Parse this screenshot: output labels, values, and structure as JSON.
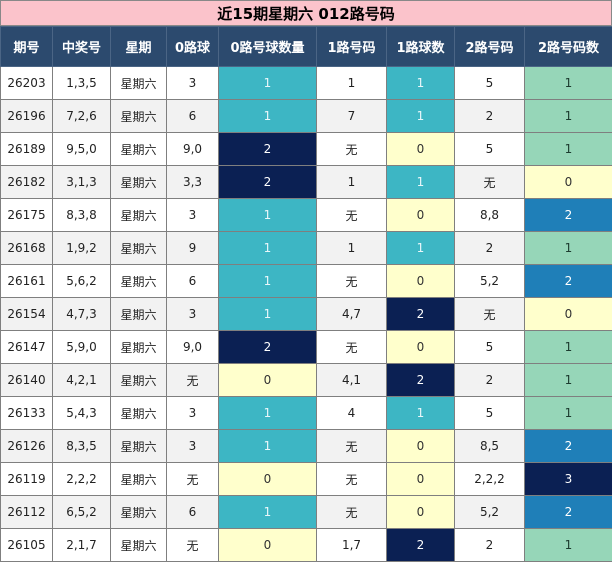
{
  "title": "近15期星期六 012路号码",
  "headers": [
    "期号",
    "中奖号",
    "星期",
    "0路球",
    "0路号球数量",
    "1路号码",
    "1路球数",
    "2路号码",
    "2路号码数"
  ],
  "rows": [
    {
      "issue": "26203",
      "numbers": "1,3,5",
      "weekday": "星期六",
      "r0": "3",
      "r0count": "1",
      "r1": "1",
      "r1count": "1",
      "r2": "5",
      "r2count": "1"
    },
    {
      "issue": "26196",
      "numbers": "7,2,6",
      "weekday": "星期六",
      "r0": "6",
      "r0count": "1",
      "r1": "7",
      "r1count": "1",
      "r2": "2",
      "r2count": "1"
    },
    {
      "issue": "26189",
      "numbers": "9,5,0",
      "weekday": "星期六",
      "r0": "9,0",
      "r0count": "2",
      "r1": "无",
      "r1count": "0",
      "r2": "5",
      "r2count": "1"
    },
    {
      "issue": "26182",
      "numbers": "3,1,3",
      "weekday": "星期六",
      "r0": "3,3",
      "r0count": "2",
      "r1": "1",
      "r1count": "1",
      "r2": "无",
      "r2count": "0"
    },
    {
      "issue": "26175",
      "numbers": "8,3,8",
      "weekday": "星期六",
      "r0": "3",
      "r0count": "1",
      "r1": "无",
      "r1count": "0",
      "r2": "8,8",
      "r2count": "2"
    },
    {
      "issue": "26168",
      "numbers": "1,9,2",
      "weekday": "星期六",
      "r0": "9",
      "r0count": "1",
      "r1": "1",
      "r1count": "1",
      "r2": "2",
      "r2count": "1"
    },
    {
      "issue": "26161",
      "numbers": "5,6,2",
      "weekday": "星期六",
      "r0": "6",
      "r0count": "1",
      "r1": "无",
      "r1count": "0",
      "r2": "5,2",
      "r2count": "2"
    },
    {
      "issue": "26154",
      "numbers": "4,7,3",
      "weekday": "星期六",
      "r0": "3",
      "r0count": "1",
      "r1": "4,7",
      "r1count": "2",
      "r2": "无",
      "r2count": "0"
    },
    {
      "issue": "26147",
      "numbers": "5,9,0",
      "weekday": "星期六",
      "r0": "9,0",
      "r0count": "2",
      "r1": "无",
      "r1count": "0",
      "r2": "5",
      "r2count": "1"
    },
    {
      "issue": "26140",
      "numbers": "4,2,1",
      "weekday": "星期六",
      "r0": "无",
      "r0count": "0",
      "r1": "4,1",
      "r1count": "2",
      "r2": "2",
      "r2count": "1"
    },
    {
      "issue": "26133",
      "numbers": "5,4,3",
      "weekday": "星期六",
      "r0": "3",
      "r0count": "1",
      "r1": "4",
      "r1count": "1",
      "r2": "5",
      "r2count": "1"
    },
    {
      "issue": "26126",
      "numbers": "8,3,5",
      "weekday": "星期六",
      "r0": "3",
      "r0count": "1",
      "r1": "无",
      "r1count": "0",
      "r2": "8,5",
      "r2count": "2"
    },
    {
      "issue": "26119",
      "numbers": "2,2,2",
      "weekday": "星期六",
      "r0": "无",
      "r0count": "0",
      "r1": "无",
      "r1count": "0",
      "r2": "2,2,2",
      "r2count": "3"
    },
    {
      "issue": "26112",
      "numbers": "6,5,2",
      "weekday": "星期六",
      "r0": "6",
      "r0count": "1",
      "r1": "无",
      "r1count": "0",
      "r2": "5,2",
      "r2count": "2"
    },
    {
      "issue": "26105",
      "numbers": "2,1,7",
      "weekday": "星期六",
      "r0": "无",
      "r0count": "0",
      "r1": "1,7",
      "r1count": "2",
      "r2": "2",
      "r2count": "1"
    }
  ],
  "colors": {
    "title_bg": "#fbc3cb",
    "header_bg": "#2c4a6e",
    "count0": "#ffffcc",
    "count1_teal": "#3db6c4",
    "count2_navy": "#0b2053",
    "r2count1_green": "#96d6b8",
    "r2count2_blue": "#1f7fb8"
  }
}
